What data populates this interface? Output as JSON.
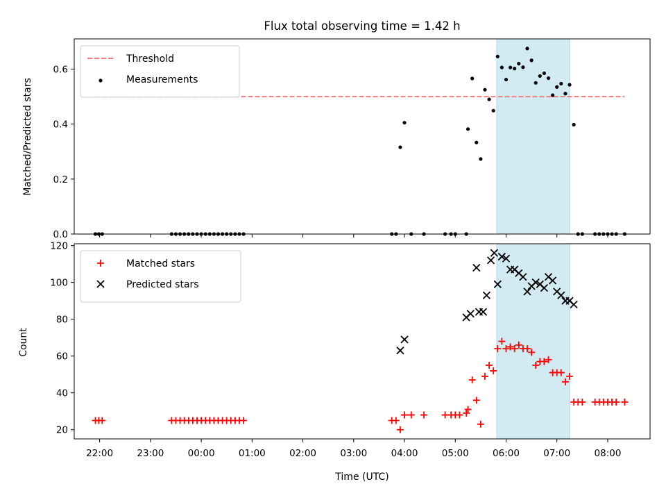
{
  "title": "Flux total observing time = 1.42 h",
  "shaded_window": {
    "start": "05:49",
    "end": "07:15"
  },
  "colors": {
    "threshold": "#f08080",
    "measurement": "#000000",
    "matched": "#ff0000",
    "predicted": "#000000",
    "shade": "#add8e6"
  },
  "chart_data": [
    {
      "type": "scatter",
      "ylabel": "Matched/Predicted stars",
      "ylim": [
        0,
        0.71
      ],
      "yticks": [
        "0.0",
        "0.2",
        "0.4",
        "0.6"
      ],
      "legend_position": "top-left",
      "threshold": {
        "name": "Threshold",
        "value": 0.5,
        "x_range": [
          "21:55",
          "08:20"
        ]
      },
      "series": [
        {
          "name": "Measurements",
          "marker": "dot",
          "points": [
            [
              "21:55",
              0
            ],
            [
              "21:59",
              0
            ],
            [
              "22:03",
              0
            ],
            [
              "23:25",
              0
            ],
            [
              "23:30",
              0
            ],
            [
              "23:35",
              0
            ],
            [
              "23:40",
              0
            ],
            [
              "23:45",
              0
            ],
            [
              "23:50",
              0
            ],
            [
              "23:55",
              0
            ],
            [
              "00:00",
              0
            ],
            [
              "00:05",
              0
            ],
            [
              "00:10",
              0
            ],
            [
              "00:15",
              0
            ],
            [
              "00:20",
              0
            ],
            [
              "00:25",
              0
            ],
            [
              "00:30",
              0
            ],
            [
              "00:35",
              0
            ],
            [
              "00:40",
              0
            ],
            [
              "00:45",
              0
            ],
            [
              "00:50",
              0
            ],
            [
              "03:45",
              0
            ],
            [
              "03:50",
              0
            ],
            [
              "03:55",
              0.316
            ],
            [
              "04:00",
              0.405
            ],
            [
              "04:08",
              0
            ],
            [
              "04:23",
              0
            ],
            [
              "04:48",
              0
            ],
            [
              "04:55",
              0
            ],
            [
              "05:00",
              0
            ],
            [
              "05:13",
              0
            ],
            [
              "05:15",
              0.382
            ],
            [
              "05:20",
              0.566
            ],
            [
              "05:25",
              0.333
            ],
            [
              "05:30",
              0.273
            ],
            [
              "05:35",
              0.525
            ],
            [
              "05:40",
              0.49
            ],
            [
              "05:45",
              0.449
            ],
            [
              "05:50",
              0.646
            ],
            [
              "05:55",
              0.606
            ],
            [
              "06:00",
              0.562
            ],
            [
              "06:05",
              0.606
            ],
            [
              "06:10",
              0.602
            ],
            [
              "06:15",
              0.62
            ],
            [
              "06:20",
              0.607
            ],
            [
              "06:25",
              0.675
            ],
            [
              "06:30",
              0.632
            ],
            [
              "06:35",
              0.55
            ],
            [
              "06:40",
              0.575
            ],
            [
              "06:45",
              0.585
            ],
            [
              "06:50",
              0.567
            ],
            [
              "06:55",
              0.505
            ],
            [
              "07:00",
              0.535
            ],
            [
              "07:05",
              0.547
            ],
            [
              "07:10",
              0.511
            ],
            [
              "07:15",
              0.543
            ],
            [
              "07:20",
              0.398
            ],
            [
              "07:25",
              0
            ],
            [
              "07:30",
              0
            ],
            [
              "07:45",
              0
            ],
            [
              "07:50",
              0
            ],
            [
              "07:55",
              0
            ],
            [
              "08:00",
              0
            ],
            [
              "08:05",
              0
            ],
            [
              "08:10",
              0
            ],
            [
              "08:20",
              0
            ]
          ]
        }
      ]
    },
    {
      "type": "scatter",
      "xlabel": "Time (UTC)",
      "ylabel": "Count",
      "ylim": [
        15,
        121
      ],
      "yticks": [
        "20",
        "40",
        "60",
        "80",
        "100",
        "120"
      ],
      "x_start": "21:30",
      "x_end": "08:50",
      "xticks": [
        "22:00",
        "23:00",
        "00:00",
        "01:00",
        "02:00",
        "03:00",
        "04:00",
        "05:00",
        "06:00",
        "07:00",
        "08:00"
      ],
      "legend_position": "top-left",
      "series": [
        {
          "name": "Matched stars",
          "marker": "plus",
          "points": [
            [
              "21:55",
              25
            ],
            [
              "21:59",
              25
            ],
            [
              "22:03",
              25
            ],
            [
              "23:25",
              25
            ],
            [
              "23:30",
              25
            ],
            [
              "23:35",
              25
            ],
            [
              "23:40",
              25
            ],
            [
              "23:45",
              25
            ],
            [
              "23:50",
              25
            ],
            [
              "23:55",
              25
            ],
            [
              "00:00",
              25
            ],
            [
              "00:05",
              25
            ],
            [
              "00:10",
              25
            ],
            [
              "00:15",
              25
            ],
            [
              "00:20",
              25
            ],
            [
              "00:25",
              25
            ],
            [
              "00:30",
              25
            ],
            [
              "00:35",
              25
            ],
            [
              "00:40",
              25
            ],
            [
              "00:45",
              25
            ],
            [
              "00:50",
              25
            ],
            [
              "03:45",
              25
            ],
            [
              "03:50",
              25
            ],
            [
              "03:55",
              20
            ],
            [
              "04:00",
              28
            ],
            [
              "04:08",
              28
            ],
            [
              "04:23",
              28
            ],
            [
              "04:48",
              28
            ],
            [
              "04:55",
              28
            ],
            [
              "05:00",
              28
            ],
            [
              "05:05",
              28
            ],
            [
              "05:13",
              29
            ],
            [
              "05:15",
              31
            ],
            [
              "05:20",
              47
            ],
            [
              "05:25",
              36
            ],
            [
              "05:30",
              23
            ],
            [
              "05:35",
              49
            ],
            [
              "05:40",
              55
            ],
            [
              "05:45",
              52
            ],
            [
              "05:50",
              64
            ],
            [
              "05:55",
              68
            ],
            [
              "06:00",
              64
            ],
            [
              "06:05",
              65
            ],
            [
              "06:10",
              64
            ],
            [
              "06:15",
              66
            ],
            [
              "06:20",
              64
            ],
            [
              "06:25",
              64
            ],
            [
              "06:30",
              62
            ],
            [
              "06:35",
              55
            ],
            [
              "06:40",
              57
            ],
            [
              "06:45",
              57
            ],
            [
              "06:50",
              58
            ],
            [
              "06:55",
              51
            ],
            [
              "07:00",
              51
            ],
            [
              "07:05",
              51
            ],
            [
              "07:10",
              46
            ],
            [
              "07:15",
              49
            ],
            [
              "07:20",
              35
            ],
            [
              "07:25",
              35
            ],
            [
              "07:30",
              35
            ],
            [
              "07:45",
              35
            ],
            [
              "07:50",
              35
            ],
            [
              "07:55",
              35
            ],
            [
              "08:00",
              35
            ],
            [
              "08:05",
              35
            ],
            [
              "08:10",
              35
            ],
            [
              "08:20",
              35
            ]
          ]
        },
        {
          "name": "Predicted stars",
          "marker": "x",
          "points": [
            [
              "03:55",
              63
            ],
            [
              "04:00",
              69
            ],
            [
              "05:13",
              81
            ],
            [
              "05:18",
              83
            ],
            [
              "05:25",
              108
            ],
            [
              "05:28",
              84
            ],
            [
              "05:33",
              84
            ],
            [
              "05:37",
              93
            ],
            [
              "05:42",
              112
            ],
            [
              "05:46",
              116
            ],
            [
              "05:50",
              99
            ],
            [
              "05:55",
              114
            ],
            [
              "06:00",
              113
            ],
            [
              "06:05",
              107
            ],
            [
              "06:10",
              107
            ],
            [
              "06:15",
              105
            ],
            [
              "06:20",
              103
            ],
            [
              "06:25",
              95
            ],
            [
              "06:30",
              98
            ],
            [
              "06:35",
              100
            ],
            [
              "06:40",
              99
            ],
            [
              "06:45",
              97
            ],
            [
              "06:50",
              103
            ],
            [
              "06:55",
              101
            ],
            [
              "07:00",
              95
            ],
            [
              "07:05",
              93
            ],
            [
              "07:10",
              90
            ],
            [
              "07:15",
              90
            ],
            [
              "07:20",
              88
            ]
          ]
        }
      ]
    }
  ]
}
